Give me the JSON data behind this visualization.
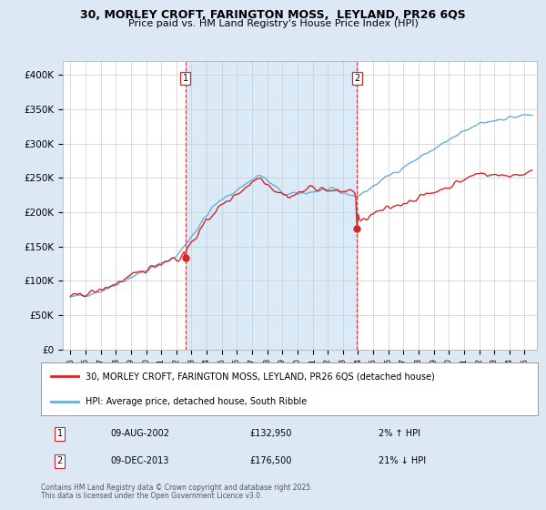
{
  "title_line1": "30, MORLEY CROFT, FARINGTON MOSS,  LEYLAND, PR26 6QS",
  "title_line2": "Price paid vs. HM Land Registry's House Price Index (HPI)",
  "ylim": [
    0,
    420000
  ],
  "yticks": [
    0,
    50000,
    100000,
    150000,
    200000,
    250000,
    300000,
    350000,
    400000
  ],
  "ytick_labels": [
    "£0",
    "£50K",
    "£100K",
    "£150K",
    "£200K",
    "£250K",
    "£300K",
    "£350K",
    "£400K"
  ],
  "hpi_color": "#6aaed6",
  "property_color": "#d62728",
  "vline_color": "#d62728",
  "marker1_year": 2002.6,
  "marker1_label": "1",
  "marker1_date": "09-AUG-2002",
  "marker1_price": "£132,950",
  "marker1_hpi": "2% ↑ HPI",
  "marker1_value": 132950,
  "marker2_year": 2013.93,
  "marker2_label": "2",
  "marker2_date": "09-DEC-2013",
  "marker2_price": "£176,500",
  "marker2_hpi": "21% ↓ HPI",
  "marker2_value": 176500,
  "legend_property": "30, MORLEY CROFT, FARINGTON MOSS, LEYLAND, PR26 6QS (detached house)",
  "legend_hpi": "HPI: Average price, detached house, South Ribble",
  "footer_line1": "Contains HM Land Registry data © Crown copyright and database right 2025.",
  "footer_line2": "This data is licensed under the Open Government Licence v3.0.",
  "background_color": "#dce9f5",
  "plot_bg_color": "#ffffff",
  "grid_color": "#cccccc",
  "span_color": "#daeaf7"
}
